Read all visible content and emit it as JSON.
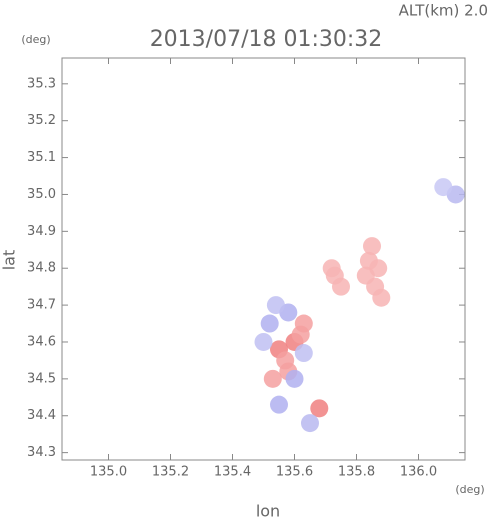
{
  "chart_data": {
    "type": "scatter",
    "title": "2013/07/18 01:30:32",
    "altitude_label": "ALT(km) 2.0",
    "y_unit": "(deg)",
    "x_unit": "(deg)",
    "xlabel": "lon",
    "ylabel": "lat",
    "xlim": [
      134.85,
      136.15
    ],
    "ylim": [
      34.28,
      35.37
    ],
    "xticks": [
      {
        "value": 135.0,
        "label": "135.0"
      },
      135.2,
      135.4,
      135.6,
      135.8,
      {
        "value": 136.0,
        "label": "136.0"
      }
    ],
    "yticks": [
      34.3,
      34.4,
      34.5,
      34.6,
      34.7,
      34.8,
      34.9,
      {
        "value": 35.0,
        "label": "35.0"
      },
      35.1,
      35.2,
      35.3
    ],
    "x": [
      135.73,
      135.75,
      135.72,
      135.84,
      135.87,
      135.86,
      135.88,
      135.85,
      135.83,
      135.6,
      135.55,
      135.58,
      135.68,
      135.63,
      135.53,
      135.57,
      135.62,
      136.12,
      136.08,
      135.52,
      135.6,
      135.55,
      135.65,
      135.5,
      135.58,
      135.54,
      135.63
    ],
    "y": [
      34.78,
      34.75,
      34.8,
      34.82,
      34.8,
      34.75,
      34.72,
      34.86,
      34.78,
      34.6,
      34.58,
      34.52,
      34.42,
      34.65,
      34.5,
      34.55,
      34.62,
      35.0,
      35.02,
      34.65,
      34.5,
      34.43,
      34.38,
      34.6,
      34.68,
      34.7,
      34.57
    ],
    "colors": [
      "#f7b4b4",
      "#f7b4b4",
      "#f7b4b4",
      "#f7b4b4",
      "#f7b4b4",
      "#f7b4b4",
      "#f7b4b4",
      "#f7b4b4",
      "#f7b4b4",
      "#f08080",
      "#f08080",
      "#f4a0a0",
      "#f08080",
      "#f4a0a0",
      "#f4a0a0",
      "#f4a0a0",
      "#f4a0a0",
      "#b8b8f0",
      "#c8c8f4",
      "#b0b0f0",
      "#b0b0f0",
      "#b0b0f0",
      "#b8b8f0",
      "#c0c0f2",
      "#b0b0f0",
      "#c0c0f2",
      "#c0c0f2"
    ]
  }
}
